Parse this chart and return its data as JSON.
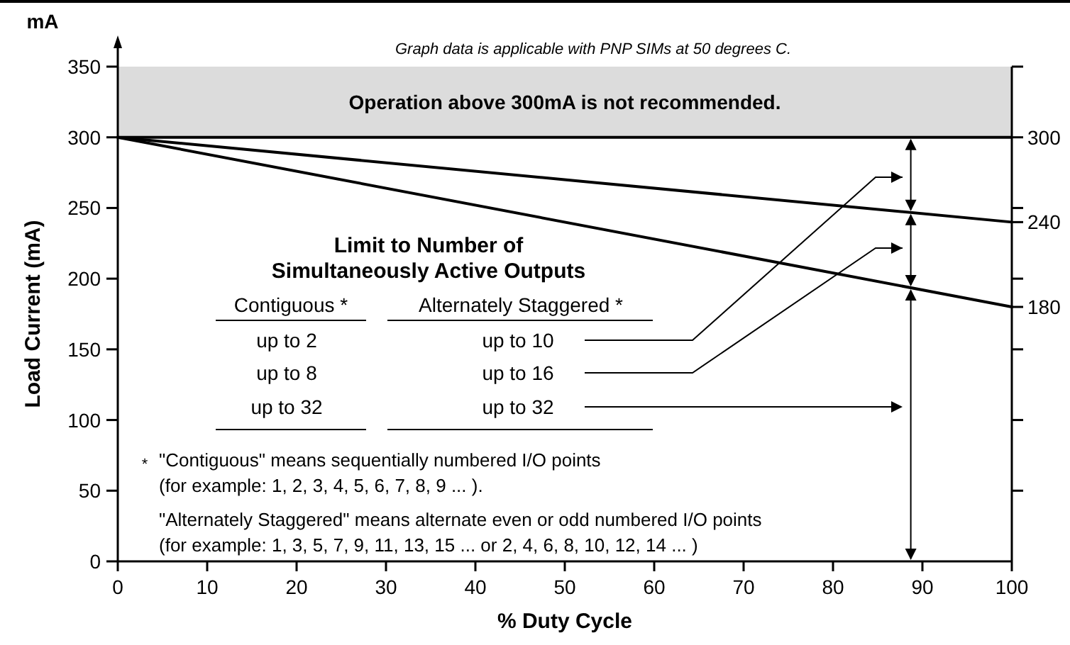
{
  "chart_data": {
    "type": "line",
    "subtitle": "Graph data is applicable with PNP SIMs at 50 degrees C.",
    "xlabel": "% Duty Cycle",
    "ylabel": "Load Current (mA)",
    "x": [
      0,
      100
    ],
    "series": [
      {
        "color": "#000000",
        "values": [
          300,
          240
        ]
      },
      {
        "color": "#000000",
        "values": [
          300,
          180
        ]
      }
    ],
    "xlim": [
      0,
      100
    ],
    "xticks": [
      0,
      10,
      20,
      30,
      40,
      50,
      60,
      70,
      80,
      90,
      100
    ],
    "ylim": [
      0,
      350
    ],
    "yticks": [
      0,
      50,
      100,
      150,
      200,
      250,
      300,
      350
    ],
    "y2lim": [
      0,
      350
    ],
    "y2ticks": [
      {
        "value": 50,
        "label": null
      },
      {
        "value": 100,
        "label": null
      },
      {
        "value": 150,
        "label": null
      },
      180,
      {
        "value": 200,
        "label": null
      },
      240,
      {
        "value": 250,
        "label": null
      },
      300,
      {
        "value": 350,
        "label": null
      }
    ],
    "bands": [
      {
        "axis": "y",
        "from": 300,
        "to": 350,
        "label": "Operation above 300mA is not recommended.",
        "color": "#dcdcdc"
      }
    ],
    "ref_lines": [
      {
        "axis": "y",
        "value": 300,
        "label": null,
        "color": "#000000"
      }
    ],
    "annotations": [
      "mA",
      "Limit to Number of",
      "Simultaneously Active Outputs",
      "Contiguous *",
      "Alternately Staggered *",
      "up to 2",
      "up to 10",
      "up to 8",
      "up to 16",
      "up to 32",
      "up to 32",
      "*",
      "\"Contiguous\" means sequentially numbered I/O points",
      "(for example: 1, 2, 3, 4, 5, 6, 7, 8, 9 ...  ).",
      "\"Alternately Staggered\" means alternate even or odd numbered I/O points",
      "(for example: 1, 3, 5, 7, 9, 11, 13, 15 ...    or  2, 4, 6, 8, 10, 12, 14 ...  )"
    ]
  }
}
